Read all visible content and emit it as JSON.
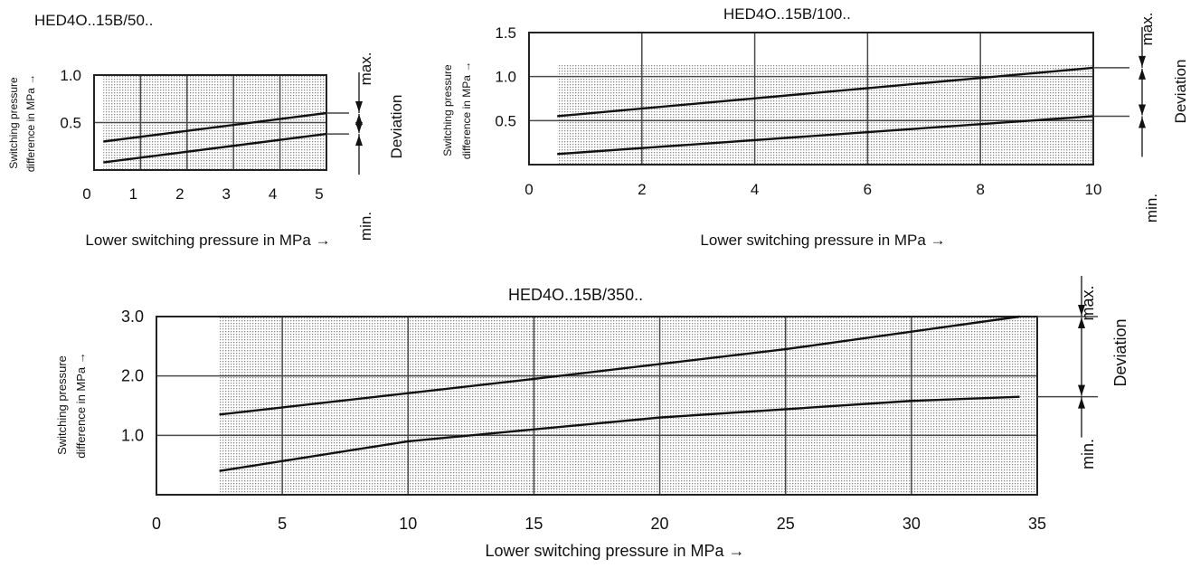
{
  "chart_data": [
    {
      "type": "line",
      "title": "HED4O..15B/50..",
      "xlabel": "Lower switching pressure in MPa  →",
      "ylabel_line1": "Switching pressure",
      "ylabel_line2": "difference  in MPa →",
      "xlim": [
        0,
        5
      ],
      "ylim": [
        0,
        1.0
      ],
      "x_ticks": [
        "0",
        "1",
        "2",
        "3",
        "4",
        "5"
      ],
      "y_ticks": [
        {
          "value": 1.0,
          "label": "1.0"
        },
        {
          "value": 0.5,
          "label": "0.5"
        }
      ],
      "series": [
        {
          "x": [
            0.2,
            5.0
          ],
          "y": [
            0.3,
            0.6
          ]
        },
        {
          "x": [
            0.2,
            5.0
          ],
          "y": [
            0.08,
            0.38
          ]
        }
      ],
      "deviation": {
        "max_label": "max.",
        "min_label": "min.",
        "label": "Deviation"
      },
      "grid": true,
      "shaded_area": true
    },
    {
      "type": "line",
      "title": "HED4O..15B/100..",
      "xlabel": "Lower switching pressure in MPa  →",
      "ylabel_line1": "Switching pressure",
      "ylabel_line2": "difference in MPa →",
      "xlim": [
        0,
        10
      ],
      "ylim": [
        0,
        1.5
      ],
      "x_ticks": [
        "0",
        "2",
        "4",
        "6",
        "8",
        "10"
      ],
      "y_ticks": [
        {
          "value": 1.5,
          "label": "1.5"
        },
        {
          "value": 1.0,
          "label": "1.0"
        },
        {
          "value": 0.5,
          "label": "0.5"
        }
      ],
      "series": [
        {
          "x": [
            0.5,
            10.0
          ],
          "y": [
            0.55,
            1.1
          ]
        },
        {
          "x": [
            0.5,
            10.0
          ],
          "y": [
            0.12,
            0.55
          ]
        }
      ],
      "deviation": {
        "max_label": "max.",
        "min_label": "min.",
        "label": "Deviation"
      },
      "grid": true,
      "shaded_area": true
    },
    {
      "type": "line",
      "title": "HED4O..15B/350..",
      "xlabel": "Lower switching pressure in MPa  →",
      "ylabel_line1": "Switching pressure",
      "ylabel_line2": "difference  in MPa →",
      "xlim": [
        0,
        35
      ],
      "ylim": [
        0,
        3.0
      ],
      "x_ticks": [
        "0",
        "5",
        "10",
        "15",
        "20",
        "25",
        "30",
        "35"
      ],
      "y_ticks": [
        {
          "value": 3.0,
          "label": "3.0"
        },
        {
          "value": 2.0,
          "label": "2.0"
        },
        {
          "value": 1.0,
          "label": "1.0"
        }
      ],
      "series": [
        {
          "x": [
            2.5,
            15,
            25,
            34.3
          ],
          "y": [
            1.35,
            1.95,
            2.45,
            3.0
          ]
        },
        {
          "x": [
            2.5,
            10,
            20,
            30,
            34.3
          ],
          "y": [
            0.4,
            0.9,
            1.3,
            1.58,
            1.65
          ]
        }
      ],
      "deviation": {
        "max_label": "max.",
        "min_label": "min.",
        "label": "Deviation"
      },
      "grid": true,
      "shaded_area": true
    }
  ]
}
